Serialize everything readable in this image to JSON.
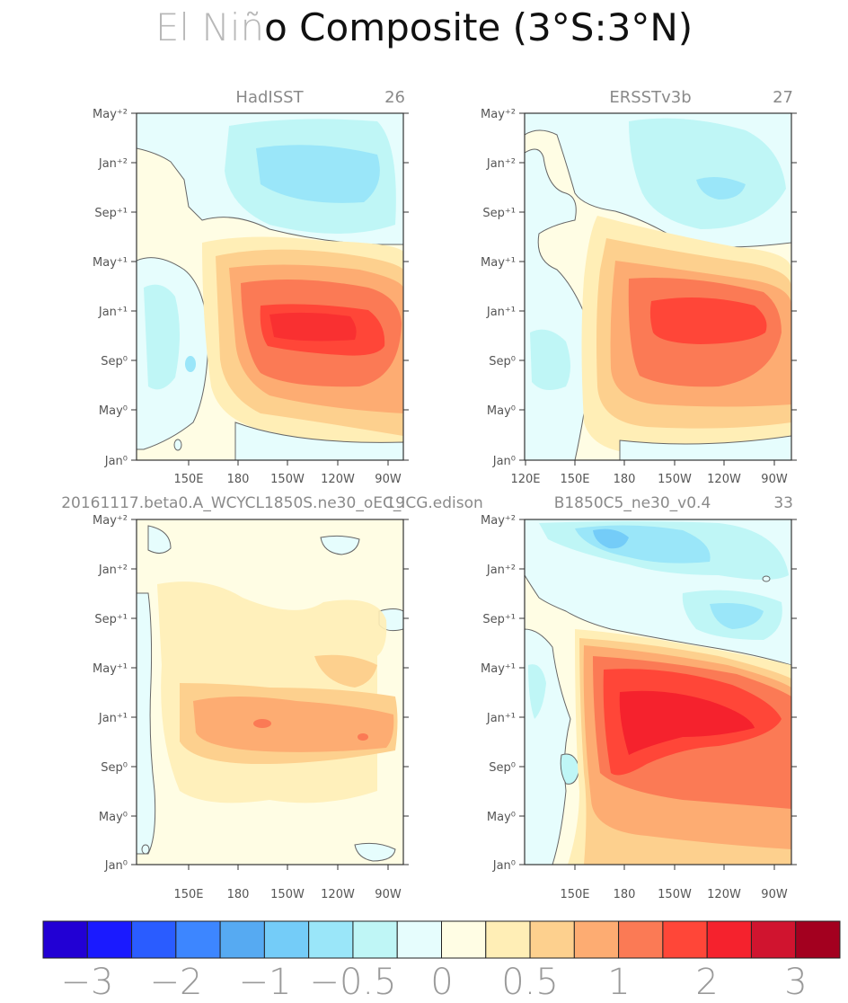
{
  "title": {
    "light_part": "El Niñ",
    "dark_part": "o Composite (3°S:3°N)"
  },
  "colors": {
    "palette": [
      "#2200d4",
      "#1a1aff",
      "#2a5cff",
      "#3d86ff",
      "#56aaf2",
      "#74ccf8",
      "#9ae6f9",
      "#bff6f6",
      "#e6fdfd",
      "#fffde4",
      "#ffeeb6",
      "#fdd08e",
      "#fdac72",
      "#fb7a55",
      "#ff4638",
      "#f5222d",
      "#d0142f",
      "#a3001f"
    ]
  },
  "chart_data": [
    {
      "type": "heatmap",
      "title": "HadISST",
      "right_label": "26",
      "x_ticks": [
        "150E",
        "180",
        "150W",
        "120W",
        "90W"
      ],
      "y_ticks": [
        "Jan⁰",
        "May⁰",
        "Sep⁰",
        "Jan⁺¹",
        "May⁺¹",
        "Sep⁺¹",
        "Jan⁺²",
        "May⁺²"
      ],
      "peak_anomaly": 2.0,
      "peak_center": {
        "lon": "140W",
        "month": "Dec⁰"
      }
    },
    {
      "type": "heatmap",
      "title": "ERSSTv3b",
      "right_label": "27",
      "x_ticks": [
        "120E",
        "150E",
        "180",
        "150W",
        "120W",
        "90W"
      ],
      "y_ticks": [
        "Jan⁰",
        "May⁰",
        "Sep⁰",
        "Jan⁺¹",
        "May⁺¹",
        "Sep⁺¹",
        "Jan⁺²",
        "May⁺²"
      ],
      "peak_anomaly": 2.0,
      "peak_center": {
        "lon": "140W",
        "month": "Dec⁰"
      }
    },
    {
      "type": "heatmap",
      "title": "20161117.beta0.A_WCYCL1850S.ne30_oEC_ICG.edison",
      "right_label": "19",
      "x_ticks": [
        "150E",
        "180",
        "150W",
        "120W",
        "90W"
      ],
      "y_ticks": [
        "Jan⁰",
        "May⁰",
        "Sep⁰",
        "Jan⁺¹",
        "May⁺¹",
        "Sep⁺¹",
        "Jan⁺²",
        "May⁺²"
      ],
      "peak_anomaly": 1.0,
      "peak_center": {
        "lon": "150W",
        "month": "Dec⁰"
      }
    },
    {
      "type": "heatmap",
      "title": "B1850C5_ne30_v0.4",
      "right_label": "33",
      "x_ticks": [
        "150E",
        "180",
        "150W",
        "120W",
        "90W"
      ],
      "y_ticks": [
        "Jan⁰",
        "May⁰",
        "Sep⁰",
        "Jan⁺¹",
        "May⁺¹",
        "Sep⁺¹",
        "Jan⁺²",
        "May⁺²"
      ],
      "peak_anomaly": 2.0,
      "peak_center": {
        "lon": "150W",
        "month": "Jan⁺¹"
      }
    }
  ],
  "colorbar": {
    "labels": [
      "−3",
      "−2",
      "−1",
      "−0.5",
      "0",
      "0.5",
      "1",
      "2",
      "3"
    ],
    "n_boxes": 18
  }
}
